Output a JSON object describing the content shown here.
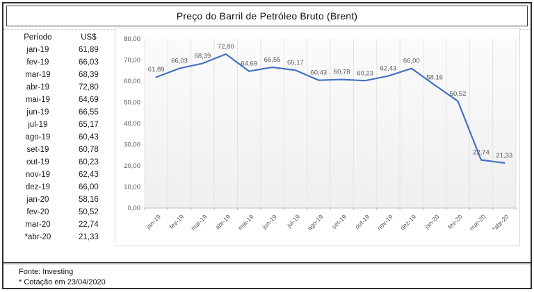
{
  "page": {
    "title": "Preço do Barril de Petróleo Bruto (Brent)"
  },
  "table": {
    "headers": [
      "Período",
      "US$"
    ],
    "rows": [
      [
        "jan-19",
        "61,89"
      ],
      [
        "fev-19",
        "66,03"
      ],
      [
        "mar-19",
        "68,39"
      ],
      [
        "abr-19",
        "72,80"
      ],
      [
        "mai-19",
        "64,69"
      ],
      [
        "jun-19",
        "66,55"
      ],
      [
        "jul-19",
        "65,17"
      ],
      [
        "ago-19",
        "60,43"
      ],
      [
        "set-19",
        "60,78"
      ],
      [
        "out-19",
        "60,23"
      ],
      [
        "nov-19",
        "62,43"
      ],
      [
        "dez-19",
        "66,00"
      ],
      [
        "jan-20",
        "58,16"
      ],
      [
        "fev-20",
        "50,52"
      ],
      [
        "mar-20",
        "22,74"
      ],
      [
        "*abr-20",
        "21,33"
      ]
    ]
  },
  "chart_data": {
    "type": "line",
    "title": "Preço do Barril de Petróleo Bruto (Brent)",
    "categories": [
      "jan-19",
      "fev-19",
      "mar-19",
      "abr-19",
      "mai-19",
      "jun-19",
      "jul-19",
      "ago-19",
      "set-19",
      "out-19",
      "nov-19",
      "dez-19",
      "jan-20",
      "fev-20",
      "mar-20",
      "*abr-20"
    ],
    "values": [
      61.89,
      66.03,
      68.39,
      72.8,
      64.69,
      66.55,
      65.17,
      60.43,
      60.78,
      60.23,
      62.43,
      66.0,
      58.16,
      50.52,
      22.74,
      21.33
    ],
    "xlabel": "",
    "ylabel": "",
    "ylim": [
      0,
      80
    ],
    "ytick_step": 10,
    "yticklabels": [
      "0,00",
      "10,00",
      "20,00",
      "30,00",
      "40,00",
      "50,00",
      "60,00",
      "70,00",
      "80,00"
    ],
    "decimal_separator": ",",
    "grid": "vertical",
    "legend": "none",
    "data_labels": "above",
    "line_color": "#4472C4",
    "label_color": "#595959",
    "axis_text_color": "#595959",
    "axis_line_color": "#bfbfbf",
    "plot_bg_top": "#fbfbfb",
    "plot_bg_bottom": "#efefef",
    "gridline_color": "#e3e3e3"
  },
  "footer": {
    "source": "Fonte: Investing",
    "note": "* Cotação em 23/04/2020"
  }
}
